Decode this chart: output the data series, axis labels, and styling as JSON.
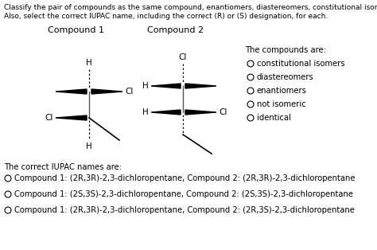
{
  "header_line1": "Classify the pair of compounds as the same compound, enantiomers, diastereomers, constitutional isomers, or not isomeric.",
  "header_line2": "Also, select the correct IUPAC name, including the correct (R) or (S) designation, for each.",
  "compound1_label": "Compound 1",
  "compound2_label": "Compound 2",
  "compounds_are_label": "The compounds are:",
  "radio_options": [
    "constitutional isomers",
    "diastereomers",
    "enantiomers",
    "not isomeric",
    "identical"
  ],
  "iupac_label": "The correct IUPAC names are:",
  "iupac_options": [
    "Compound 1: (2R,3R)-2,3-dichloropentane, Compound 2: (2R,3R)-2,3-dichloropentane",
    "Compound 1: (2S,3S)-2,3-dichloropentane, Compound 2: (2S,3S)-2,3-dichloropentane",
    "Compound 1: (2R,3R)-2,3-dichloropentane, Compound 2: (2R,3S)-2,3-dichloropentane"
  ],
  "bg_color": "#ffffff",
  "text_color": "#000000",
  "font_size_header": 6.5,
  "font_size_labels": 8.0,
  "font_size_body": 7.2,
  "font_size_atom": 7.5
}
